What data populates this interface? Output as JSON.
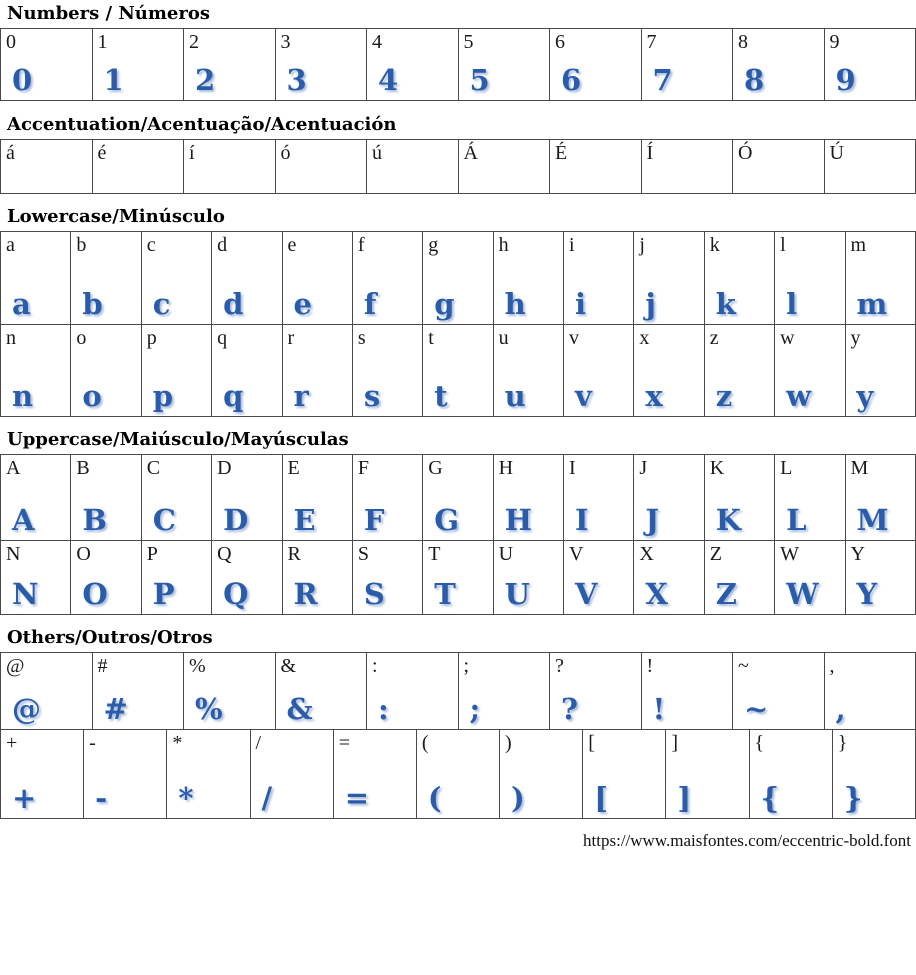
{
  "accent_color": "#2b5ca9",
  "glyph_shadow_color": "#a9bcde",
  "footer": {
    "url": "https://www.maisfontes.com/eccentric-bold.font"
  },
  "sections": [
    {
      "id": "numbers",
      "title": "Numbers / Números",
      "show_glyphs": true,
      "rows": [
        [
          "0",
          "1",
          "2",
          "3",
          "4",
          "5",
          "6",
          "7",
          "8",
          "9"
        ]
      ]
    },
    {
      "id": "accentuation",
      "title": "Accentuation/Acentuação/Acentuación",
      "show_glyphs": false,
      "rows": [
        [
          "á",
          "é",
          "í",
          "ó",
          "ú",
          "Á",
          "É",
          "Í",
          "Ó",
          "Ú"
        ]
      ]
    },
    {
      "id": "lowercase",
      "title": "Lowercase/Minúsculo",
      "show_glyphs": true,
      "rows": [
        [
          "a",
          "b",
          "c",
          "d",
          "e",
          "f",
          "g",
          "h",
          "i",
          "j",
          "k",
          "l",
          "m"
        ],
        [
          "n",
          "o",
          "p",
          "q",
          "r",
          "s",
          "t",
          "u",
          "v",
          "x",
          "z",
          "w",
          "y"
        ]
      ]
    },
    {
      "id": "uppercase",
      "title": "Uppercase/Maiúsculo/Mayúsculas",
      "show_glyphs": true,
      "rows": [
        [
          "A",
          "B",
          "C",
          "D",
          "E",
          "F",
          "G",
          "H",
          "I",
          "J",
          "K",
          "L",
          "M"
        ],
        [
          "N",
          "O",
          "P",
          "Q",
          "R",
          "S",
          "T",
          "U",
          "V",
          "X",
          "Z",
          "W",
          "Y"
        ]
      ]
    },
    {
      "id": "others",
      "title": "Others/Outros/Otros",
      "show_glyphs": true,
      "rows": [
        [
          "@",
          "#",
          "%",
          "&",
          ":",
          ";",
          "?",
          "!",
          "~",
          ","
        ],
        [
          "+",
          "-",
          "*",
          "/",
          "=",
          "(",
          ")",
          "[",
          "]",
          "{",
          "}"
        ]
      ]
    }
  ]
}
